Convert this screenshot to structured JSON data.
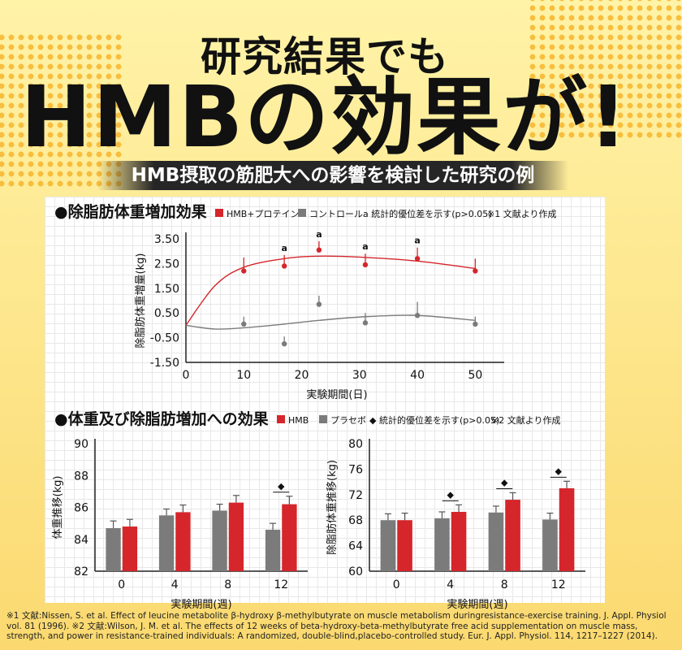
{
  "headline_line1": "研究結果でも",
  "headline_line2": "HMBの効果が!",
  "banner": "HMB摂取の筋肥大への影響を検討した研究の例",
  "references": [
    "※1 文献:Nissen, S. et al. Effect of leucine metabolite β-hydroxy β-methylbutyrate on muscle metabolism duringresistance-exercise training. J. Appl. Physiol",
    "vol. 81 (1996). ※2 文献:Wilson, J. M. et al. The effects of 12 weeks of beta-hydroxy-beta-methylbutyrate free acid supplementation on muscle mass,",
    "strength, and power in resistance-trained individuals: A randomized, double-blind,placebo-controlled study. Eur. J. Appl. Physiol. 114, 1217–1227 (2014)."
  ],
  "colors": {
    "treatment": "#d4262b",
    "control": "#7b7b7b"
  },
  "chart_data": [
    {
      "type": "scatter",
      "title": "●除脂肪体重増加効果",
      "legend": [
        "HMB+プロテイン",
        "コントロール",
        "a 統計的優位差を示す(p>0.05)",
        "※1 文献より作成"
      ],
      "xlabel": "実験期間(日)",
      "ylabel": "除脂肪体重増量(kg)",
      "x_ticks": [
        "0",
        "10",
        "20",
        "30",
        "40",
        "50"
      ],
      "y_ticks": [
        "3.50",
        "2.50",
        "1.50",
        "0.50",
        "-0.50",
        "-1.50"
      ],
      "xlim": [
        0,
        55
      ],
      "ylim": [
        -1.5,
        3.5
      ],
      "sig_marker": "a",
      "series": [
        {
          "name": "HMB+プロテイン",
          "x": [
            10,
            17,
            23,
            31,
            40,
            50
          ],
          "y": [
            2.2,
            2.4,
            3.05,
            2.45,
            2.7,
            2.2
          ],
          "err": [
            0.55,
            0.45,
            0.35,
            0.45,
            0.45,
            0.5
          ],
          "sig": [
            false,
            true,
            true,
            true,
            true,
            false
          ]
        },
        {
          "name": "コントロール",
          "x": [
            10,
            17,
            23,
            31,
            40,
            50
          ],
          "y": [
            0.05,
            -0.75,
            0.85,
            0.1,
            0.4,
            0.05
          ],
          "err": [
            0.3,
            0.3,
            0.35,
            0.4,
            0.55,
            0.3
          ]
        }
      ],
      "fit_curves": [
        {
          "name": "HMB+プロテイン",
          "x": [
            0,
            5,
            10,
            17,
            23,
            31,
            40,
            50
          ],
          "y": [
            0,
            1.6,
            2.35,
            2.7,
            2.8,
            2.75,
            2.6,
            2.3
          ]
        },
        {
          "name": "コントロール",
          "x": [
            0,
            5,
            10,
            17,
            23,
            31,
            40,
            50
          ],
          "y": [
            0,
            -0.15,
            -0.1,
            0.05,
            0.2,
            0.35,
            0.4,
            0.2
          ]
        }
      ]
    },
    {
      "type": "bar",
      "title": "●体重及び除脂肪増加への効果",
      "legend": [
        "HMB",
        "プラセボ",
        "◆ 統計的優位差を示す(p>0.05)",
        "※2 文献より作成"
      ],
      "xlabel": "実験期間(週)",
      "ylabel": "体重推移(kg)",
      "categories": [
        "0",
        "4",
        "8",
        "12"
      ],
      "ylim": [
        82,
        90
      ],
      "y_ticks": [
        "90",
        "88",
        "86",
        "84",
        "82"
      ],
      "series": [
        {
          "name": "プラセボ",
          "values": [
            84.7,
            85.5,
            85.8,
            84.6
          ],
          "err": [
            0.45,
            0.4,
            0.4,
            0.4
          ]
        },
        {
          "name": "HMB",
          "values": [
            84.8,
            85.7,
            86.3,
            86.2
          ],
          "err": [
            0.45,
            0.45,
            0.45,
            0.5
          ]
        }
      ],
      "sig": [
        false,
        false,
        false,
        true
      ],
      "sig_marker": "◆"
    },
    {
      "type": "bar",
      "xlabel": "実験期間(週)",
      "ylabel": "除脂肪体重推移(kg)",
      "categories": [
        "0",
        "4",
        "8",
        "12"
      ],
      "ylim": [
        60,
        80
      ],
      "y_ticks": [
        "80",
        "76",
        "72",
        "68",
        "64",
        "60"
      ],
      "series": [
        {
          "name": "プラセボ",
          "values": [
            68.0,
            68.3,
            69.2,
            68.1
          ],
          "err": [
            1.0,
            1.0,
            1.0,
            1.0
          ]
        },
        {
          "name": "HMB",
          "values": [
            68.0,
            69.3,
            71.2,
            73.0
          ],
          "err": [
            1.1,
            1.1,
            1.1,
            1.1
          ]
        }
      ],
      "sig": [
        false,
        true,
        true,
        true
      ],
      "sig_marker": "◆"
    }
  ]
}
